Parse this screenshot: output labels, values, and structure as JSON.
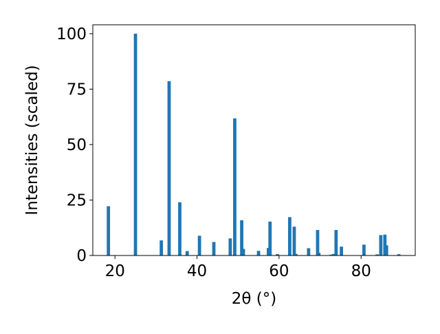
{
  "chart_data": {
    "type": "bar",
    "xlabel": "2θ (°)",
    "ylabel": "Intensities (scaled)",
    "xlim": [
      14.6,
      93.2
    ],
    "ylim": [
      0,
      104
    ],
    "x_ticks": [
      20,
      40,
      60,
      80
    ],
    "y_ticks": [
      0,
      25,
      50,
      75,
      100
    ],
    "x_tick_labels": [
      "20",
      "40",
      "60",
      "80"
    ],
    "y_tick_labels": [
      "0",
      "25",
      "50",
      "75",
      "100"
    ],
    "grid": false,
    "legend": "none",
    "bar_color": "#1f77b4",
    "bar_width": 0.8,
    "series": [
      {
        "x": [
          18.4,
          25.0,
          31.3,
          33.2,
          35.8,
          37.6,
          40.6,
          44.1,
          48.1,
          49.2,
          50.9,
          51.3,
          55.0,
          57.4,
          57.8,
          59.6,
          62.6,
          63.7,
          64.1,
          67.2,
          69.4,
          69.7,
          72.7,
          73.3,
          73.9,
          75.2,
          80.7,
          83.9,
          84.8,
          85.8,
          86.2,
          89.2
        ],
        "values": [
          22.2,
          100,
          6.8,
          78.6,
          24.0,
          2.0,
          8.9,
          6.1,
          7.7,
          61.8,
          15.9,
          3.0,
          2.1,
          3.4,
          15.3,
          0.6,
          17.3,
          13.0,
          0.7,
          3.3,
          11.5,
          1.2,
          0.4,
          0.7,
          11.5,
          4.0,
          4.9,
          0.5,
          9.2,
          9.4,
          4.6,
          0.6
        ]
      }
    ]
  }
}
